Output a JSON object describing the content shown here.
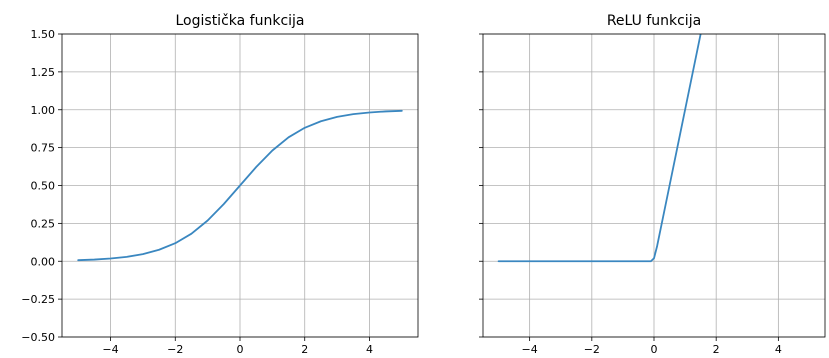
{
  "chart_data": [
    {
      "type": "line",
      "title": "Logistička funkcija",
      "xlabel": "",
      "ylabel": "",
      "xlim": [
        -5.5,
        5.5
      ],
      "ylim": [
        -0.5,
        1.5
      ],
      "xticks": [
        -4,
        -2,
        0,
        2,
        4
      ],
      "xtick_labels": [
        "−4",
        "−2",
        "0",
        "2",
        "4"
      ],
      "yticks": [
        -0.5,
        -0.25,
        0,
        0.25,
        0.5,
        0.75,
        1,
        1.25,
        1.5
      ],
      "ytick_labels": [
        "−0.50",
        "−0.25",
        "0.00",
        "0.25",
        "0.50",
        "0.75",
        "1.00",
        "1.25",
        "1.50"
      ],
      "grid": true,
      "color": "#3a87c0",
      "series": [
        {
          "x": [
            -5,
            -4.5,
            -4,
            -3.5,
            -3,
            -2.5,
            -2,
            -1.5,
            -1,
            -0.5,
            0,
            0.5,
            1,
            1.5,
            2,
            2.5,
            3,
            3.5,
            4,
            4.5,
            5
          ],
          "y": [
            0.007,
            0.011,
            0.018,
            0.029,
            0.047,
            0.076,
            0.119,
            0.182,
            0.269,
            0.378,
            0.5,
            0.622,
            0.731,
            0.818,
            0.881,
            0.924,
            0.953,
            0.971,
            0.982,
            0.989,
            0.993
          ]
        }
      ]
    },
    {
      "type": "line",
      "title": "ReLU funkcija",
      "xlabel": "",
      "ylabel": "",
      "xlim": [
        -5.5,
        5.5
      ],
      "ylim": [
        -0.5,
        1.5
      ],
      "xticks": [
        -4,
        -2,
        0,
        2,
        4
      ],
      "xtick_labels": [
        "−4",
        "−2",
        "0",
        "2",
        "4"
      ],
      "yticks": [
        -0.5,
        -0.25,
        0,
        0.25,
        0.5,
        0.75,
        1,
        1.25,
        1.5
      ],
      "ytick_labels": [],
      "grid": true,
      "color": "#3a87c0",
      "series": [
        {
          "x": [
            -5,
            -4,
            -3,
            -2,
            -1,
            -0.1,
            0,
            0.1,
            0.5,
            1,
            1.5
          ],
          "y": [
            0,
            0,
            0,
            0,
            0,
            0,
            0.02,
            0.1,
            0.5,
            1,
            1.5
          ]
        }
      ]
    }
  ]
}
